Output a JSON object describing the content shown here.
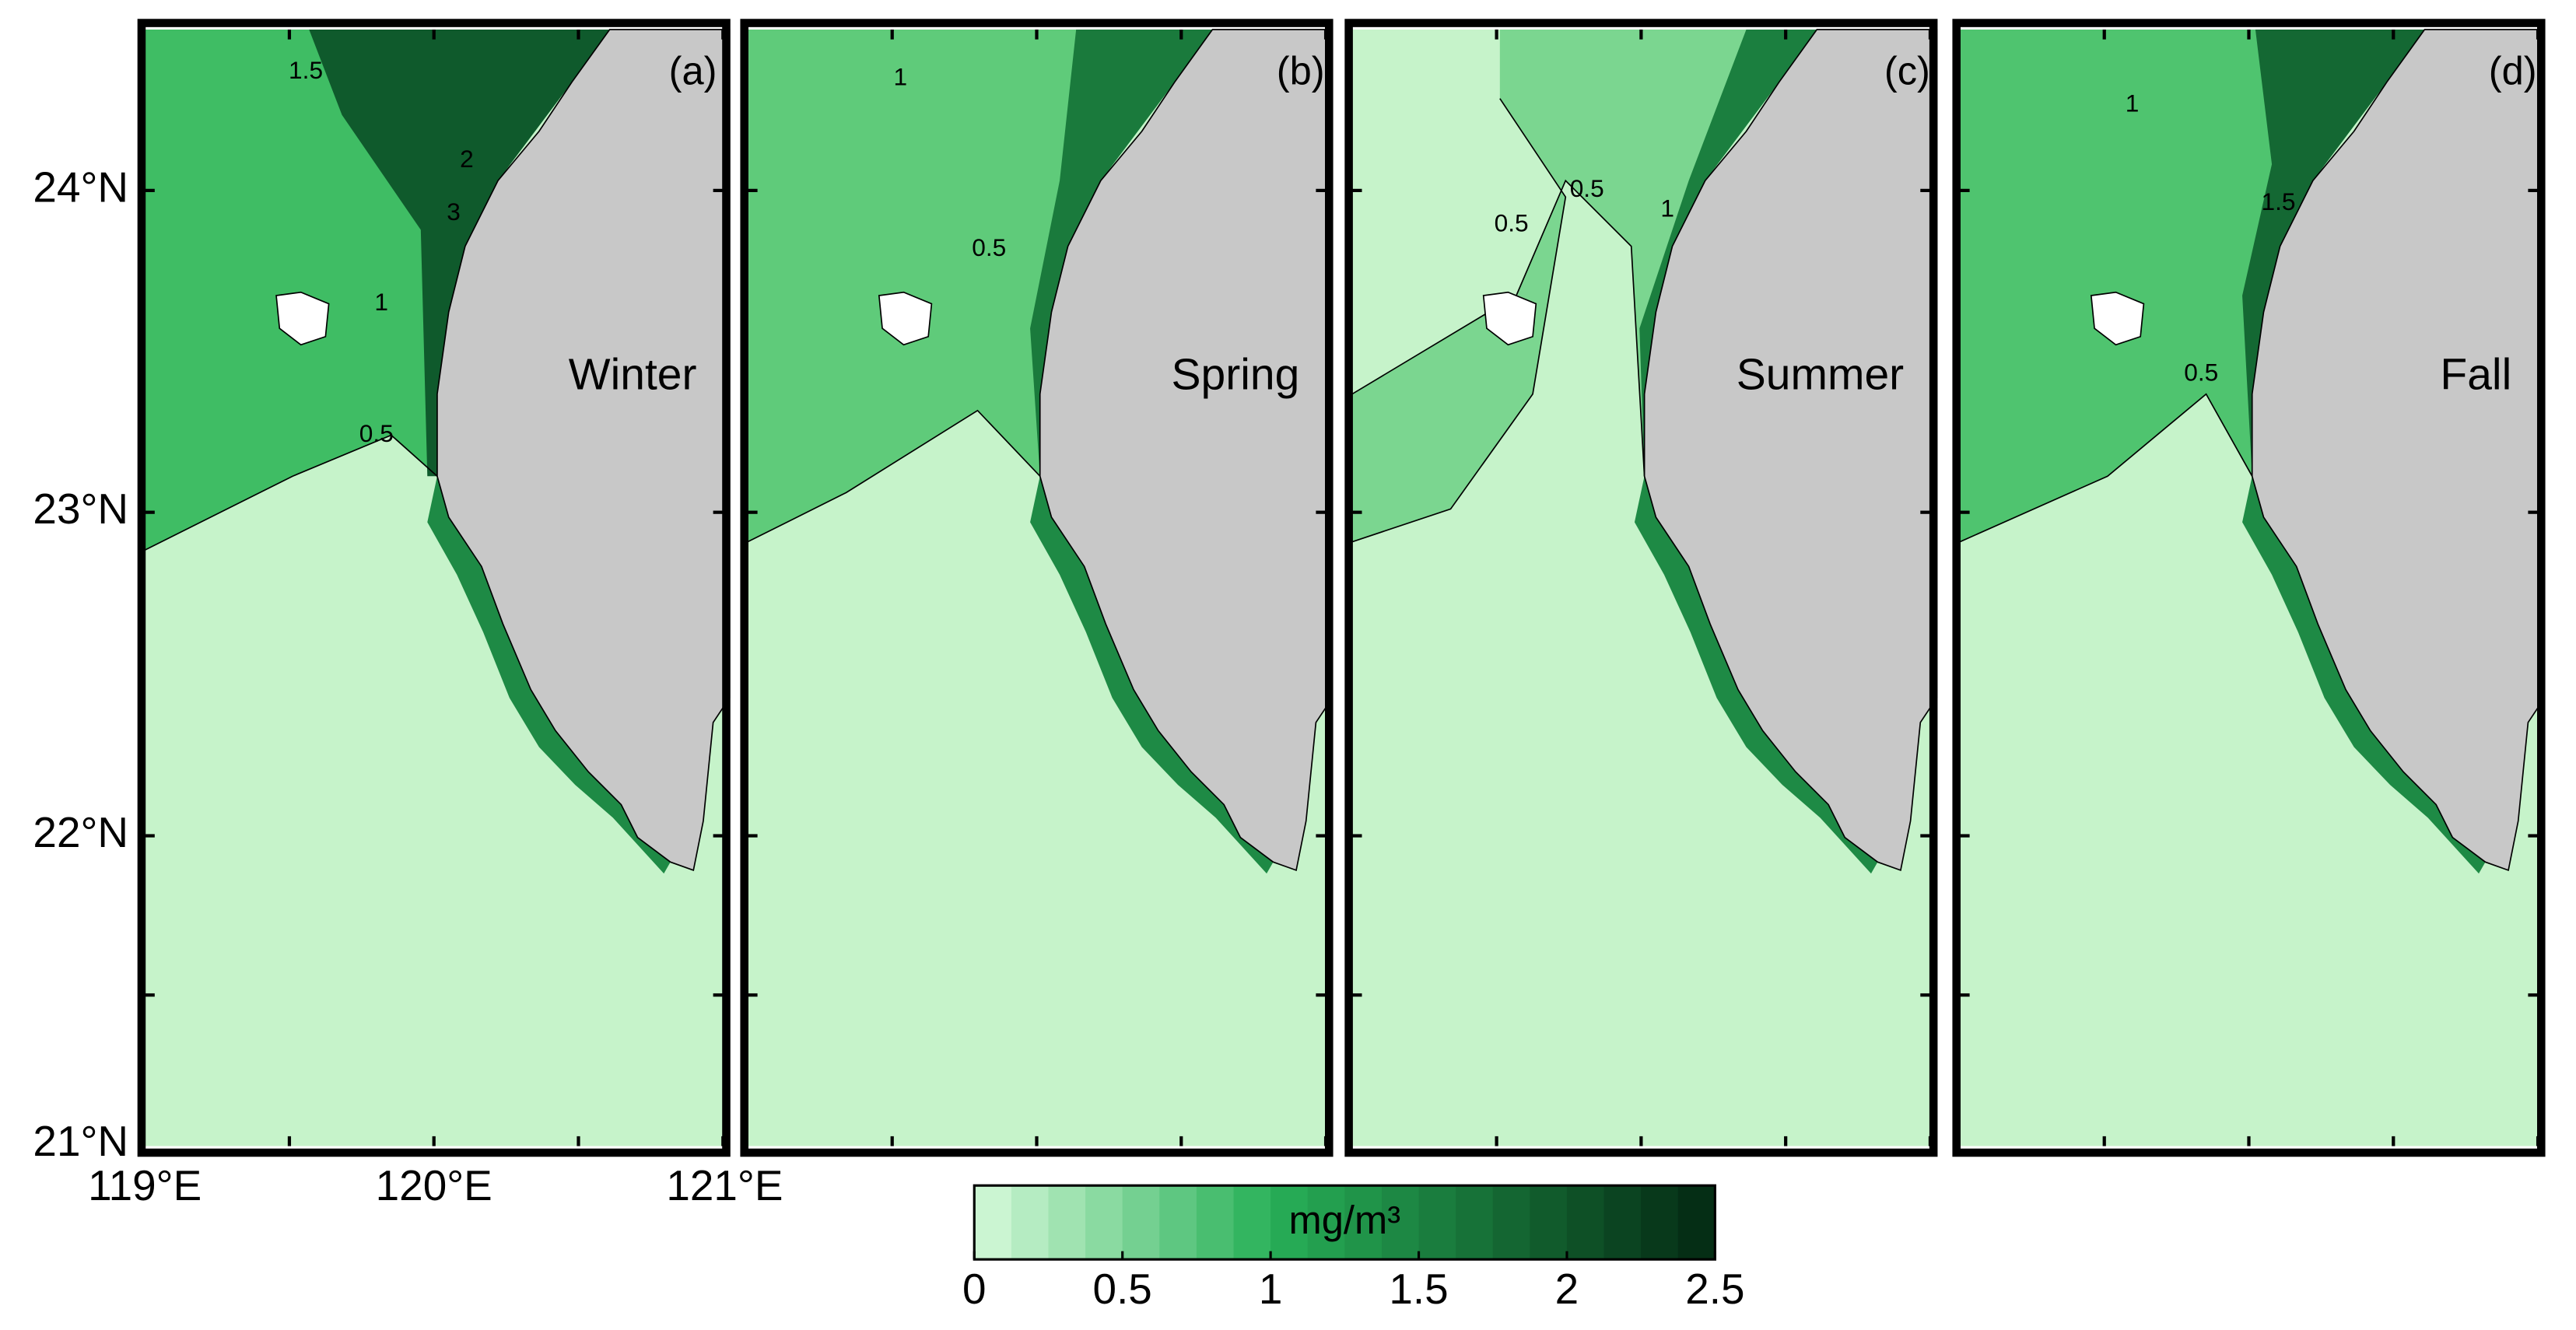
{
  "panels": [
    {
      "label": "(a)",
      "season": "Winter",
      "contour_labels": [
        "1.5",
        "2",
        "3",
        "1",
        "0.5"
      ]
    },
    {
      "label": "(b)",
      "season": "Spring",
      "contour_labels": [
        "1",
        "0.5"
      ]
    },
    {
      "label": "(c)",
      "season": "Summer",
      "contour_labels": [
        "0.5",
        "0.5",
        "1"
      ]
    },
    {
      "label": "(d)",
      "season": "Fall",
      "contour_labels": [
        "1",
        "1.5",
        "0.5"
      ]
    }
  ],
  "y_axis": {
    "labels": [
      "24°N",
      "23°N",
      "22°N",
      "21°N"
    ]
  },
  "x_axis": {
    "labels": [
      "119°E",
      "120°E",
      "121°E"
    ]
  },
  "colorbar": {
    "unit": "mg/m³",
    "range": [
      0,
      2.5
    ],
    "ticks": [
      0,
      0.5,
      1,
      1.5,
      2,
      2.5
    ]
  }
}
